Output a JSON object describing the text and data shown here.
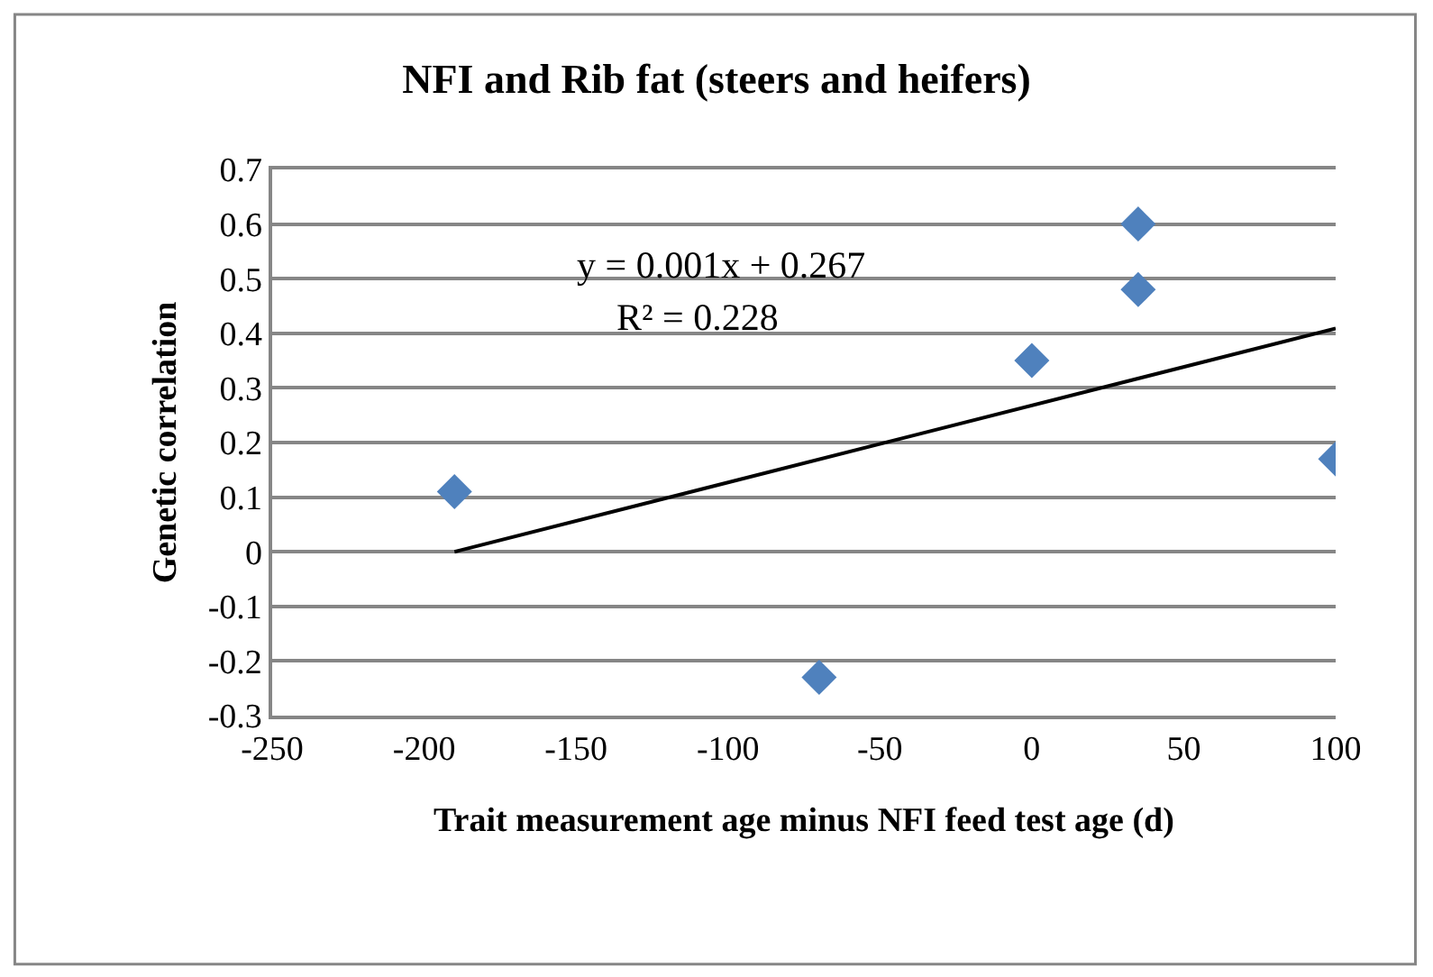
{
  "chart_data": {
    "type": "scatter",
    "title": "NFI and Rib fat (steers and heifers)",
    "xlabel": "Trait measurement age minus NFI feed test age (d)",
    "ylabel": "Genetic correlation",
    "series": [
      {
        "color": "#4f81bd",
        "marker": "diamond",
        "x": [
          -190,
          -70,
          0,
          35,
          35,
          100
        ],
        "values": [
          0.11,
          -0.23,
          0.35,
          0.48,
          0.6,
          0.17
        ]
      },
      {
        "type": "line",
        "color": "#000000",
        "marker": "none",
        "line_style": "solid",
        "x": [
          -190,
          100
        ],
        "values": [
          0.0,
          0.409
        ]
      }
    ],
    "annotations": [
      "y = 0.001x + 0.267",
      "R² = 0.228"
    ],
    "xlim": [
      -250,
      100
    ],
    "xticks": [
      -250,
      -200,
      -150,
      -100,
      -50,
      0,
      50,
      100
    ],
    "ylim": [
      -0.3,
      0.7
    ],
    "yticks": [
      -0.3,
      -0.2,
      -0.1,
      0,
      0.1,
      0.2,
      0.3,
      0.4,
      0.5,
      0.6,
      0.7
    ],
    "grid": "y"
  }
}
